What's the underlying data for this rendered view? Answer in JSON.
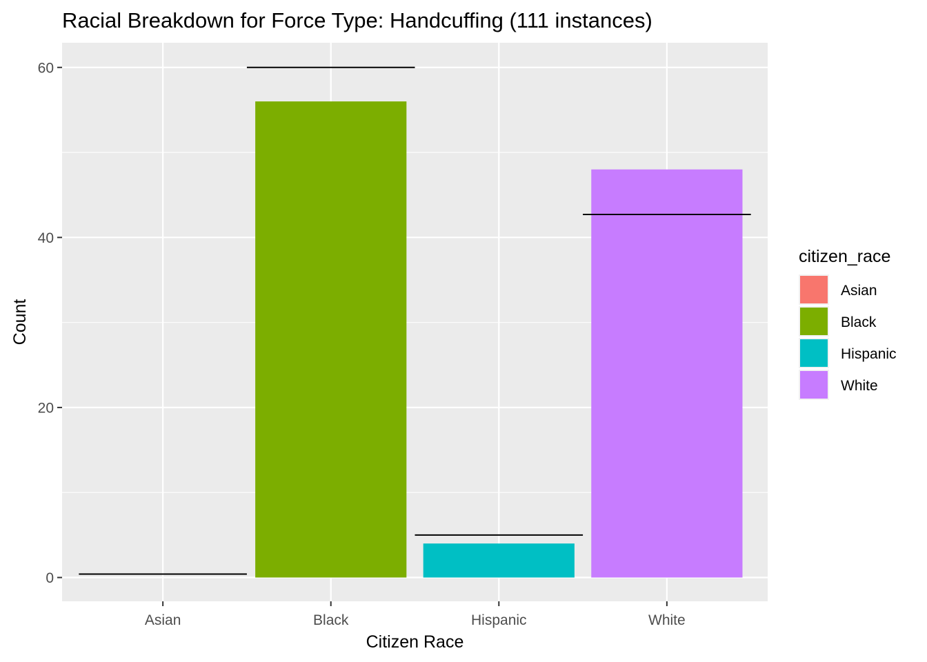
{
  "chart_data": {
    "type": "bar",
    "title": "Racial Breakdown for Force Type: Handcuffing (111 instances)",
    "xlabel": "Citizen Race",
    "ylabel": "Count",
    "categories": [
      "Asian",
      "Black",
      "Hispanic",
      "White"
    ],
    "values": [
      0,
      56,
      4,
      48
    ],
    "reference_lines": [
      0.4,
      60,
      5,
      42.7
    ],
    "colors": [
      "#F8766D",
      "#7CAE00",
      "#00BFC4",
      "#C77CFF"
    ],
    "ylim": [
      -2.8,
      62.9
    ],
    "yticks": [
      0,
      20,
      40,
      60
    ],
    "grid": true,
    "legend": {
      "title": "citizen_race",
      "position": "right",
      "entries": [
        "Asian",
        "Black",
        "Hispanic",
        "White"
      ]
    }
  }
}
